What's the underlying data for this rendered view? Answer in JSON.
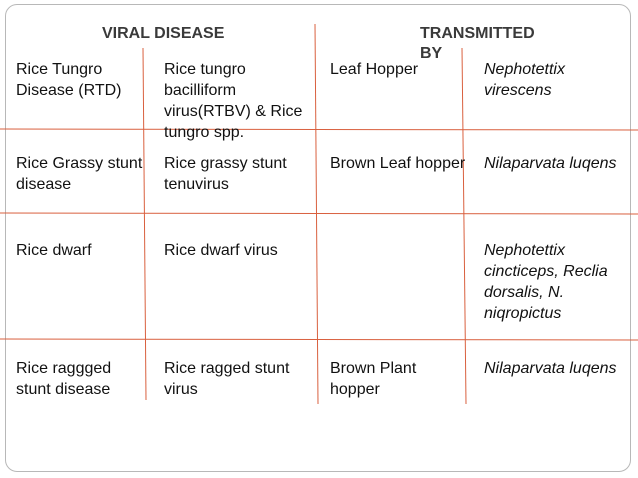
{
  "headers": {
    "left": "VIRAL DISEASE",
    "right": "TRANSMITTED BY"
  },
  "rows": [
    [
      "Rice Tungro Disease (RTD)",
      "Rice tungro bacilliform virus(RTBV) & Rice tungro spp.",
      "Leaf Hopper",
      "Nephotettix virescens"
    ],
    [
      "Rice Grassy stunt disease",
      "Rice grassy stunt tenuvirus",
      "Brown Leaf hopper",
      "Nilaparvata luqens"
    ],
    [
      "Rice dwarf",
      "Rice dwarf virus",
      "",
      "Nephotettix cincticeps, Reclia dorsalis, N. niqropictus"
    ],
    [
      "Rice raggged stunt disease",
      "Rice ragged stunt virus",
      "Brown Plant hopper",
      "Nilaparvata luqens"
    ]
  ],
  "colors": {
    "rule": "#d9603f",
    "header": "#3a3a3a",
    "frame": "#b8b8b8"
  }
}
